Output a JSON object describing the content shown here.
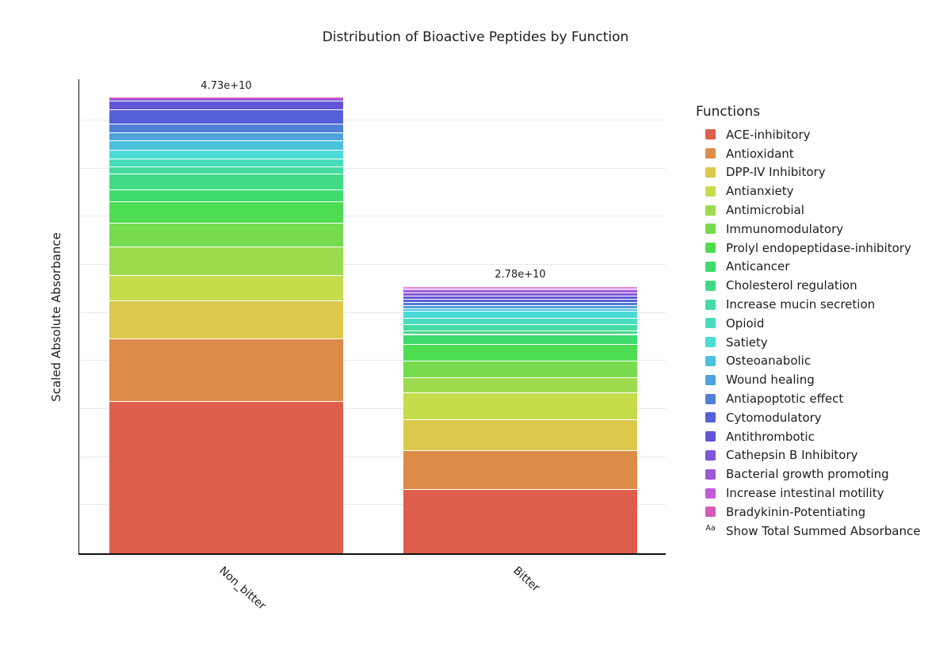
{
  "title": "Distribution of Bioactive Peptides by Function",
  "y_axis_label": "Scaled Absolute Absorbance",
  "legend": {
    "title": "Functions",
    "extra_item": {
      "glyph": "Aa",
      "label": "Show Total Summed Absorbance"
    }
  },
  "colors": {
    "axis_line": "#111111",
    "gridline": "#e8e8ec",
    "text": "#1d1d1d",
    "background": "#ffffff"
  },
  "chart_data": {
    "type": "bar",
    "stacked": true,
    "grid": true,
    "legend_position": "right",
    "categories": [
      "Non_bitter",
      "Bitter"
    ],
    "totals": [
      "4.73e+10",
      "2.78e+10"
    ],
    "total_values": [
      47300000000,
      27800000000
    ],
    "ylim": [
      0,
      49450000000
    ],
    "gridline_step": 5000000000,
    "xlabel": "",
    "ylabel": "Scaled Absolute Absorbance",
    "series": [
      {
        "name": "ACE-inhibitory",
        "color": "#dd5f4b",
        "values": [
          15800000000,
          6700000000
        ]
      },
      {
        "name": "Antioxidant",
        "color": "#dd8b49",
        "values": [
          6560000000,
          4000000000
        ]
      },
      {
        "name": "DPP-IV Inhibitory",
        "color": "#dcc84b",
        "values": [
          3910000000,
          3190000000
        ]
      },
      {
        "name": "Antianxiety",
        "color": "#c6dc4b",
        "values": [
          2650000000,
          2850000000
        ]
      },
      {
        "name": "Antimicrobial",
        "color": "#9cdb4d",
        "values": [
          3010000000,
          1540000000
        ]
      },
      {
        "name": "Immunomodulatory",
        "color": "#76db4f",
        "values": [
          2470000000,
          1760000000
        ]
      },
      {
        "name": "Prolyl endopeptidase-inhibitory",
        "color": "#4edc52",
        "values": [
          2230000000,
          1760000000
        ]
      },
      {
        "name": "Anticancer",
        "color": "#40db6d",
        "values": [
          1210000000,
          990000000
        ]
      },
      {
        "name": "Cholesterol regulation",
        "color": "#43da87",
        "values": [
          1680000000,
          330000000
        ]
      },
      {
        "name": "Increase mucin secretion",
        "color": "#45dba2",
        "values": [
          730000000,
          660000000
        ]
      },
      {
        "name": "Opioid",
        "color": "#48dcbd",
        "values": [
          780000000,
          660000000
        ]
      },
      {
        "name": "Satiety",
        "color": "#4adbd7",
        "values": [
          960000000,
          770000000
        ]
      },
      {
        "name": "Osteoanabolic",
        "color": "#4dc0dc",
        "values": [
          960000000,
          290000000
        ]
      },
      {
        "name": "Wound healing",
        "color": "#4fa3da",
        "values": [
          850000000,
          290000000
        ]
      },
      {
        "name": "Antiapoptotic effect",
        "color": "#517ed7",
        "values": [
          900000000,
          330000000
        ]
      },
      {
        "name": "Cytomodulatory",
        "color": "#5560d6",
        "values": [
          1450000000,
          330000000
        ]
      },
      {
        "name": "Antithrombotic",
        "color": "#6355d5",
        "values": [
          900000000,
          330000000
        ]
      },
      {
        "name": "Cathepsin B Inhibitory",
        "color": "#7e57d6",
        "values": [
          120000000,
          330000000
        ]
      },
      {
        "name": "Bacterial growth promoting",
        "color": "#9d59d7",
        "values": [
          80000000,
          350000000
        ]
      },
      {
        "name": "Increase intestinal motility",
        "color": "#c35bd8",
        "values": [
          80000000,
          160000000
        ]
      },
      {
        "name": "Bradykinin-Potentiating",
        "color": "#d85ab8",
        "values": [
          40000000,
          160000000
        ]
      }
    ]
  }
}
